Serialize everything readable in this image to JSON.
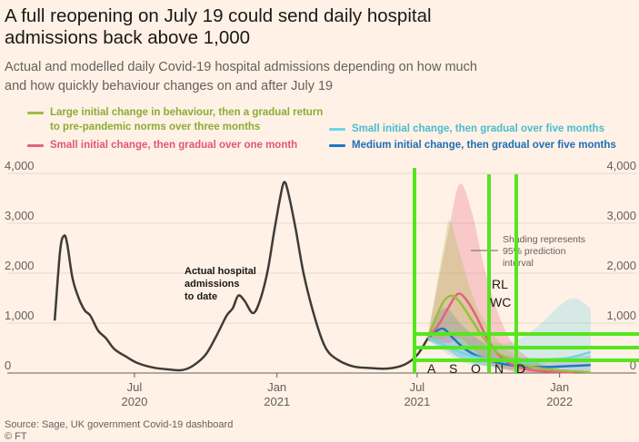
{
  "title": "A full reopening on July 19 could send daily hospital admissions back above 1,000",
  "subtitle": "Actual and modelled daily Covid-19 hospital admissions depending on how much and how quickly behaviour changes on and after July 19",
  "legend": [
    {
      "label": "Large initial change in behaviour, then a gradual return to pre-pandemic norms over three months",
      "color": "#9bbd3f"
    },
    {
      "label": "Small initial change, then gradual over one month",
      "color": "#e5607f"
    },
    {
      "label": "Small initial change, then gradual over five months",
      "color": "#6fd5e6"
    },
    {
      "label": "Medium initial change, then gradual over five months",
      "color": "#1f77c4"
    }
  ],
  "annotations": {
    "actual": [
      "Actual hospital",
      "admissions",
      "to date"
    ],
    "shading": [
      "Shading represents",
      "95% prediction",
      "interval"
    ]
  },
  "overlay_letters": {
    "months": [
      "A",
      "S",
      "O",
      "N",
      "D"
    ],
    "rl": "RL",
    "wc": "WC"
  },
  "source": "Source: Sage, UK government Covid-19 dashboard",
  "copyright": "© FT",
  "chart_data": {
    "type": "line",
    "title": "A full reopening on July 19 could send daily hospital admissions back above 1,000",
    "ylim": [
      0,
      4000
    ],
    "y_ticks": [
      "0",
      "1,000",
      "2,000",
      "3,000",
      "4,000"
    ],
    "y_tick_values": [
      0,
      1000,
      2000,
      3000,
      4000
    ],
    "x_ticks": [
      {
        "date": "2020-07-01",
        "month": "Jul",
        "year": "2020"
      },
      {
        "date": "2021-01-01",
        "month": "Jan",
        "year": "2021"
      },
      {
        "date": "2021-07-01",
        "month": "Jul",
        "year": "2021"
      },
      {
        "date": "2022-01-01",
        "month": "Jan",
        "year": "2022"
      }
    ],
    "xlim": [
      "2020-03-01",
      "2022-02-15"
    ],
    "actual": {
      "color": "#403b38",
      "points": [
        [
          "2020-03-20",
          1050
        ],
        [
          "2020-03-27",
          2450
        ],
        [
          "2020-04-01",
          2750
        ],
        [
          "2020-04-05",
          2600
        ],
        [
          "2020-04-12",
          1900
        ],
        [
          "2020-04-20",
          1500
        ],
        [
          "2020-04-28",
          1250
        ],
        [
          "2020-05-05",
          1150
        ],
        [
          "2020-05-15",
          850
        ],
        [
          "2020-05-25",
          700
        ],
        [
          "2020-06-05",
          480
        ],
        [
          "2020-06-20",
          330
        ],
        [
          "2020-07-05",
          200
        ],
        [
          "2020-07-25",
          110
        ],
        [
          "2020-08-15",
          70
        ],
        [
          "2020-09-01",
          60
        ],
        [
          "2020-09-15",
          150
        ],
        [
          "2020-10-01",
          370
        ],
        [
          "2020-10-15",
          750
        ],
        [
          "2020-10-28",
          1150
        ],
        [
          "2020-11-05",
          1300
        ],
        [
          "2020-11-12",
          1550
        ],
        [
          "2020-11-20",
          1450
        ],
        [
          "2020-12-01",
          1200
        ],
        [
          "2020-12-10",
          1450
        ],
        [
          "2020-12-20",
          2050
        ],
        [
          "2020-12-28",
          2800
        ],
        [
          "2021-01-05",
          3500
        ],
        [
          "2021-01-10",
          3820
        ],
        [
          "2021-01-15",
          3650
        ],
        [
          "2021-01-25",
          2900
        ],
        [
          "2021-02-05",
          1950
        ],
        [
          "2021-02-20",
          1050
        ],
        [
          "2021-03-05",
          500
        ],
        [
          "2021-03-20",
          270
        ],
        [
          "2021-04-10",
          130
        ],
        [
          "2021-05-01",
          100
        ],
        [
          "2021-05-25",
          90
        ],
        [
          "2021-06-15",
          170
        ],
        [
          "2021-07-01",
          360
        ],
        [
          "2021-07-15",
          700
        ]
      ]
    },
    "series": [
      {
        "color": "#1f77c4",
        "points": [
          [
            "2021-07-15",
            700
          ],
          [
            "2021-07-28",
            860
          ],
          [
            "2021-08-05",
            880
          ],
          [
            "2021-08-15",
            720
          ],
          [
            "2021-09-01",
            480
          ],
          [
            "2021-09-20",
            320
          ],
          [
            "2021-10-15",
            200
          ],
          [
            "2021-11-15",
            130
          ],
          [
            "2021-12-15",
            120
          ],
          [
            "2022-01-15",
            140
          ],
          [
            "2022-02-10",
            160
          ]
        ],
        "band": [
          [
            "2021-07-15",
            650,
            750
          ],
          [
            "2021-08-05",
            500,
            1300
          ],
          [
            "2021-09-01",
            250,
            900
          ],
          [
            "2021-10-15",
            100,
            400
          ],
          [
            "2021-12-01",
            50,
            300
          ],
          [
            "2022-02-10",
            50,
            350
          ]
        ]
      },
      {
        "color": "#6fd5e6",
        "points": [
          [
            "2021-07-15",
            700
          ],
          [
            "2021-07-25",
            640
          ],
          [
            "2021-08-10",
            520
          ],
          [
            "2021-09-01",
            380
          ],
          [
            "2021-09-25",
            290
          ],
          [
            "2021-10-20",
            230
          ],
          [
            "2021-11-20",
            210
          ],
          [
            "2021-12-20",
            250
          ],
          [
            "2022-01-20",
            330
          ],
          [
            "2022-02-10",
            420
          ]
        ],
        "band": [
          [
            "2021-07-15",
            650,
            750
          ],
          [
            "2021-09-01",
            200,
            700
          ],
          [
            "2021-10-25",
            150,
            600
          ],
          [
            "2021-12-01",
            200,
            900
          ],
          [
            "2022-01-01",
            300,
            1350
          ],
          [
            "2022-01-20",
            350,
            1500
          ],
          [
            "2022-02-10",
            300,
            1300
          ]
        ]
      },
      {
        "color": "#e5607f",
        "points": [
          [
            "2021-07-15",
            700
          ],
          [
            "2021-07-28",
            950
          ],
          [
            "2021-08-10",
            1300
          ],
          [
            "2021-08-22",
            1580
          ],
          [
            "2021-09-01",
            1500
          ],
          [
            "2021-09-15",
            1150
          ],
          [
            "2021-10-01",
            650
          ],
          [
            "2021-10-20",
            280
          ],
          [
            "2021-11-15",
            90
          ],
          [
            "2021-12-15",
            30
          ],
          [
            "2022-01-20",
            10
          ]
        ],
        "band": [
          [
            "2021-07-15",
            650,
            750
          ],
          [
            "2021-08-10",
            600,
            2800
          ],
          [
            "2021-08-25",
            700,
            3780
          ],
          [
            "2021-09-10",
            500,
            3200
          ],
          [
            "2021-10-01",
            200,
            1800
          ],
          [
            "2021-11-01",
            30,
            600
          ],
          [
            "2021-12-15",
            0,
            100
          ]
        ]
      },
      {
        "color": "#9bbd3f",
        "points": [
          [
            "2021-07-15",
            700
          ],
          [
            "2021-07-25",
            1100
          ],
          [
            "2021-08-05",
            1450
          ],
          [
            "2021-08-15",
            1550
          ],
          [
            "2021-08-25",
            1420
          ],
          [
            "2021-09-10",
            1050
          ],
          [
            "2021-09-25",
            700
          ],
          [
            "2021-10-15",
            380
          ],
          [
            "2021-11-10",
            180
          ],
          [
            "2021-12-10",
            90
          ],
          [
            "2022-01-10",
            40
          ],
          [
            "2022-02-10",
            20
          ]
        ],
        "band": [
          [
            "2021-07-15",
            650,
            750
          ],
          [
            "2021-08-05",
            700,
            2600
          ],
          [
            "2021-08-12",
            800,
            3050
          ],
          [
            "2021-08-25",
            600,
            2400
          ],
          [
            "2021-09-20",
            300,
            1200
          ],
          [
            "2021-11-01",
            50,
            400
          ],
          [
            "2022-01-01",
            0,
            100
          ]
        ]
      }
    ]
  }
}
